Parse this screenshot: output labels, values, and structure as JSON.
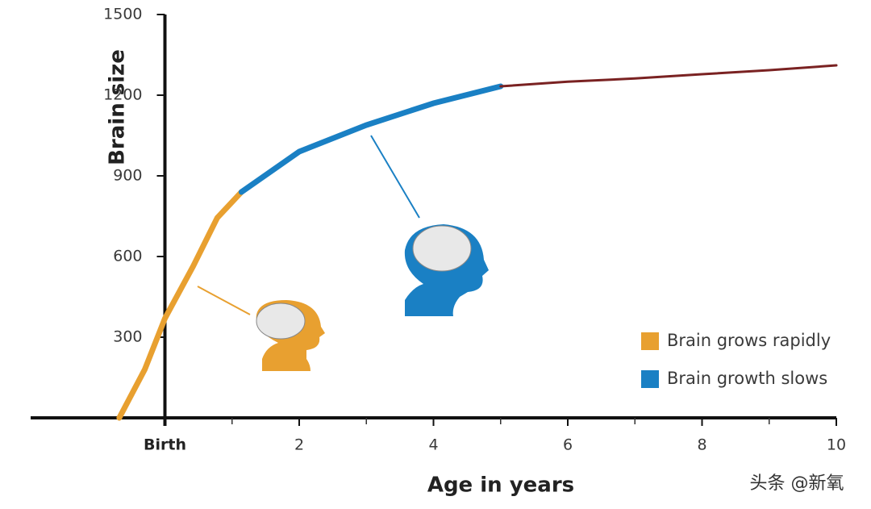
{
  "chart_data": {
    "type": "line",
    "y_label": "Brain size",
    "x_label": "Age in years",
    "xlim": [
      -2,
      10
    ],
    "ylim": [
      0,
      1500
    ],
    "xticks": [
      {
        "value": 0,
        "label": "Birth"
      },
      2,
      4,
      6,
      8,
      10
    ],
    "xminorticks": [
      1,
      3,
      5,
      7,
      9
    ],
    "yticks": [
      300,
      600,
      900,
      1200,
      1500
    ],
    "series": [
      {
        "name": "Brain grows rapidly",
        "color": "#e8a030",
        "x": [
          -0.68,
          -0.3,
          0,
          0.42,
          0.78,
          1.14
        ],
        "values": [
          0,
          180,
          370,
          564,
          744,
          840
        ]
      },
      {
        "name": "Brain growth slows",
        "color": "#1a80c4",
        "x": [
          1.14,
          2,
          3,
          4,
          5
        ],
        "values": [
          840,
          990,
          1089,
          1170,
          1233
        ]
      },
      {
        "color": "#7a2222",
        "x": [
          5,
          6,
          7,
          8,
          9,
          10
        ],
        "values": [
          1233,
          1250,
          1262,
          1278,
          1293,
          1311
        ]
      }
    ],
    "legend": "lower right",
    "watermark": "头条 @新氧"
  }
}
